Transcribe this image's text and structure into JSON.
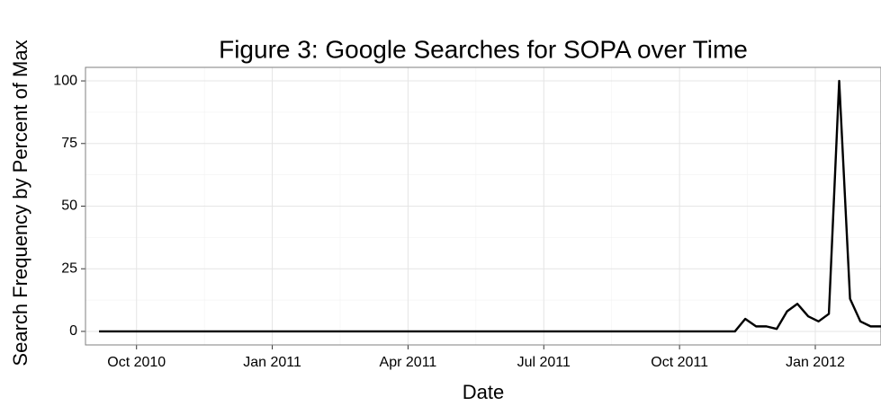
{
  "chart_data": {
    "type": "line",
    "title": "Figure 3: Google Searches for SOPA over Time",
    "xlabel": "Date",
    "ylabel": "Search Frequency by Percent of Max",
    "x": [
      2010.681,
      2010.7,
      2010.719,
      2010.739,
      2010.758,
      2010.777,
      2010.796,
      2010.815,
      2010.835,
      2010.854,
      2010.873,
      2010.892,
      2010.911,
      2010.931,
      2010.95,
      2010.969,
      2010.988,
      2011.007,
      2011.026,
      2011.046,
      2011.065,
      2011.084,
      2011.103,
      2011.123,
      2011.142,
      2011.161,
      2011.18,
      2011.199,
      2011.219,
      2011.238,
      2011.257,
      2011.276,
      2011.295,
      2011.315,
      2011.334,
      2011.353,
      2011.372,
      2011.391,
      2011.411,
      2011.43,
      2011.449,
      2011.468,
      2011.487,
      2011.507,
      2011.526,
      2011.545,
      2011.564,
      2011.583,
      2011.603,
      2011.622,
      2011.641,
      2011.66,
      2011.679,
      2011.699,
      2011.718,
      2011.737,
      2011.756,
      2011.775,
      2011.795,
      2011.814,
      2011.833,
      2011.852,
      2011.871,
      2011.891,
      2011.91,
      2011.929,
      2011.948,
      2011.967,
      2011.987,
      2012.006,
      2012.025,
      2012.044,
      2012.064,
      2012.083,
      2012.102,
      2012.121
    ],
    "series": [
      {
        "color": "#000000",
        "values": [
          0,
          0,
          0,
          0,
          0,
          0,
          0,
          0,
          0,
          0,
          0,
          0,
          0,
          0,
          0,
          0,
          0,
          0,
          0,
          0,
          0,
          0,
          0,
          0,
          0,
          0,
          0,
          0,
          0,
          0,
          0,
          0,
          0,
          0,
          0,
          0,
          0,
          0,
          0,
          0,
          0,
          0,
          0,
          0,
          0,
          0,
          0,
          0,
          0,
          0,
          0,
          0,
          0,
          0,
          0,
          0,
          0,
          0,
          0,
          0,
          0,
          0,
          5,
          2,
          2,
          1,
          8,
          11,
          6,
          4,
          7,
          100,
          13,
          4,
          2,
          2
        ]
      }
    ],
    "xlim": [
      2010.656,
      2012.121
    ],
    "xticks": [
      {
        "value": 2010.75,
        "label": "Oct 2010"
      },
      {
        "value": 2011.0,
        "label": "Jan 2011"
      },
      {
        "value": 2011.25,
        "label": "Apr 2011"
      },
      {
        "value": 2011.5,
        "label": "Jul 2011"
      },
      {
        "value": 2011.75,
        "label": "Oct 2011"
      },
      {
        "value": 2012.0,
        "label": "Jan 2012"
      }
    ],
    "ylim": [
      -5.4,
      105.4
    ],
    "yticks": [
      0,
      25,
      50,
      75,
      100
    ],
    "grid": true
  }
}
